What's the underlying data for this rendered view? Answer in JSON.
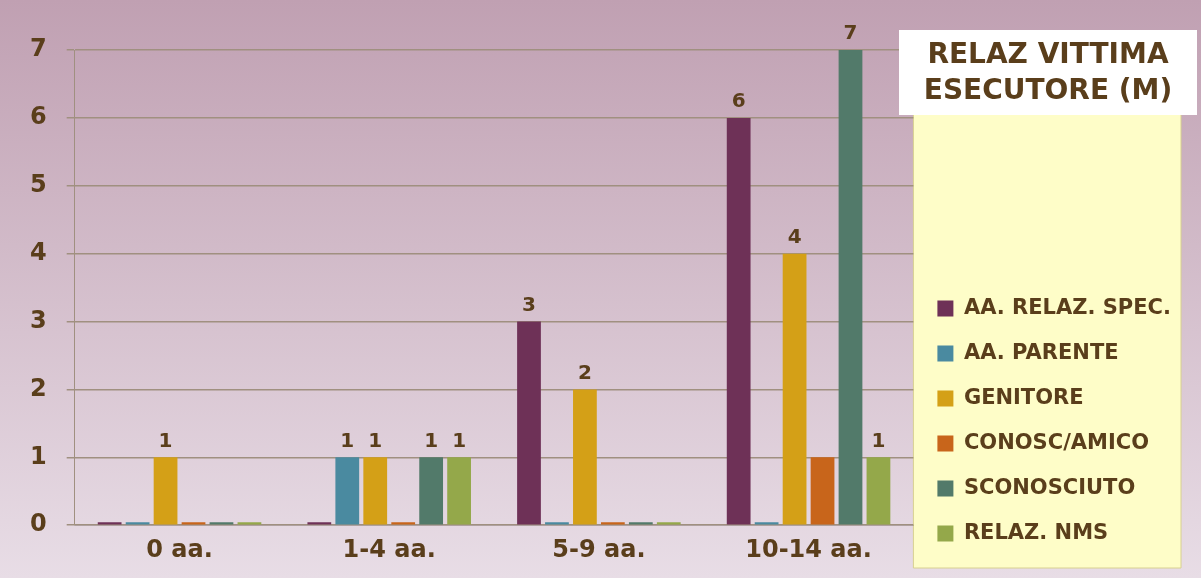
{
  "chart_data": {
    "type": "bar",
    "title": "RELAZ VITTIMA ESECUTORE (M)",
    "categories": [
      "0 aa.",
      "1-4 aa.",
      "5-9 aa.",
      "10-14 aa."
    ],
    "series": [
      {
        "name": "AA. RELAZ. SPEC.",
        "color": "#6e3157",
        "values": [
          0,
          0,
          3,
          6
        ],
        "value_labels": [
          null,
          null,
          "3",
          "6"
        ]
      },
      {
        "name": "AA. PARENTE",
        "color": "#4a8aa0",
        "values": [
          0,
          1,
          0,
          0
        ],
        "value_labels": [
          null,
          "1",
          null,
          null
        ]
      },
      {
        "name": "GENITORE",
        "color": "#d4a017",
        "values": [
          1,
          1,
          2,
          4
        ],
        "value_labels": [
          "1",
          "1",
          "2",
          "4"
        ]
      },
      {
        "name": "CONOSC/AMICO",
        "color": "#c8651b",
        "values": [
          0,
          0,
          0,
          1
        ],
        "value_labels": [
          null,
          null,
          null,
          null
        ]
      },
      {
        "name": "SCONOSCIUTO",
        "color": "#527a6a",
        "values": [
          0,
          1,
          0,
          7
        ],
        "value_labels": [
          null,
          "1",
          null,
          "7"
        ]
      },
      {
        "name": "RELAZ. NMS",
        "color": "#94a84a",
        "values": [
          0,
          1,
          0,
          1
        ],
        "value_labels": [
          null,
          "1",
          null,
          "1"
        ]
      }
    ],
    "ylim": [
      0,
      7
    ],
    "yticks": [
      0,
      1,
      2,
      3,
      4,
      5,
      6,
      7
    ],
    "grid": "y",
    "legend": "right"
  }
}
